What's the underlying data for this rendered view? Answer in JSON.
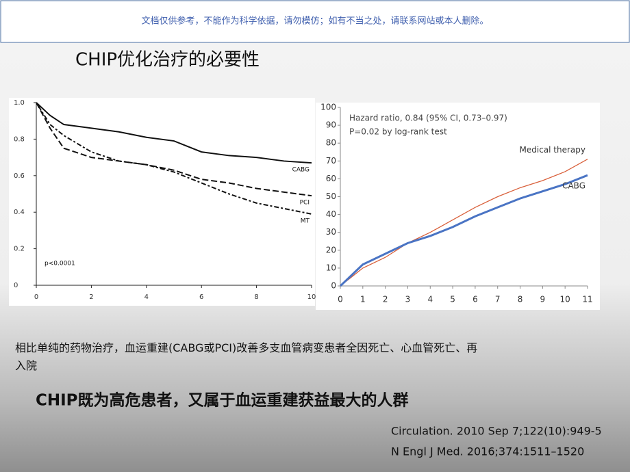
{
  "banner": "文档仅供参考，不能作为科学依据，请勿模仿；如有不当之处，请联系网站或本人删除。",
  "title": "CHIP优化治疗的必要性",
  "chart_data": [
    {
      "type": "line",
      "annotation": "p<0.0001",
      "x": [
        0,
        0.5,
        1,
        2,
        3,
        4,
        5,
        6,
        7,
        8,
        9,
        10
      ],
      "xlim": [
        0,
        10
      ],
      "xticks": [
        0,
        2,
        4,
        6,
        8,
        10
      ],
      "ylim": [
        0,
        1
      ],
      "yticks": [
        0,
        0.2,
        0.4,
        0.6,
        0.8,
        {
          "value": 1,
          "label": "1.0"
        }
      ],
      "series": [
        {
          "name": "CABG",
          "color": "#111111",
          "values": [
            1.0,
            0.93,
            0.88,
            0.86,
            0.84,
            0.81,
            0.79,
            0.73,
            0.71,
            0.7,
            0.68,
            0.67
          ]
        },
        {
          "name": "PCI",
          "color": "#111111",
          "values": [
            1.0,
            0.86,
            0.75,
            0.7,
            0.68,
            0.66,
            0.63,
            0.58,
            0.56,
            0.53,
            0.51,
            0.49
          ]
        },
        {
          "name": "MT",
          "color": "#111111",
          "values": [
            1.0,
            0.88,
            0.82,
            0.73,
            0.68,
            0.66,
            0.62,
            0.56,
            0.5,
            0.45,
            0.42,
            0.39
          ]
        }
      ]
    },
    {
      "type": "line",
      "annotations": [
        "Hazard ratio, 0.84 (95% CI, 0.73–0.97)",
        "P=0.02 by log-rank test"
      ],
      "x": [
        0,
        1,
        2,
        3,
        4,
        5,
        6,
        7,
        8,
        9,
        10,
        11
      ],
      "xlim": [
        0,
        11
      ],
      "xticks": [
        0,
        1,
        2,
        3,
        4,
        5,
        6,
        7,
        8,
        9,
        10,
        11
      ],
      "ylim": [
        0,
        100
      ],
      "yticks": [
        0,
        10,
        20,
        30,
        40,
        50,
        60,
        70,
        80,
        90,
        100
      ],
      "series": [
        {
          "name": "Medical therapy",
          "color": "#d9603b",
          "values": [
            0,
            10,
            16,
            24,
            30,
            37,
            44,
            50,
            55,
            59,
            64,
            71
          ]
        },
        {
          "name": "CABG",
          "color": "#4a74c4",
          "values": [
            0,
            12,
            18,
            24,
            28,
            33,
            39,
            44,
            49,
            53,
            57,
            62
          ]
        }
      ]
    }
  ],
  "body": "相比单纯的药物治疗，血运重建(CABG或PCI)改善多支血管病变患者全因死亡、心血管死亡、再入院",
  "headline": "CHIP既为高危患者，又属于血运重建获益最大的人群",
  "references": [
    "Circulation. 2010 Sep 7;122(10):949-5",
    "N Engl J Med. 2016;374:1511–1520"
  ]
}
